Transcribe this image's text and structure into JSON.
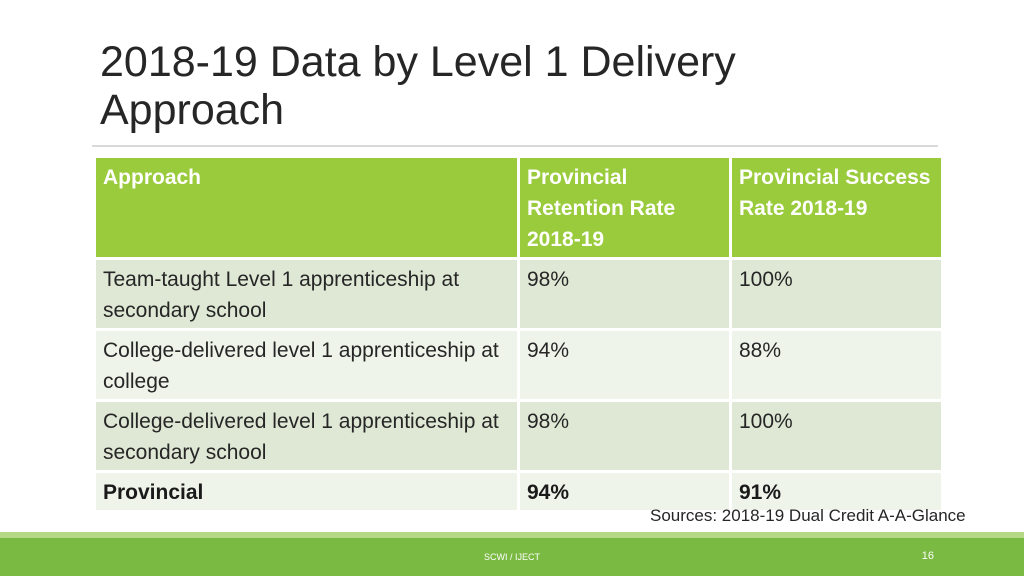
{
  "slide": {
    "title": "2018-19 Data by Level 1 Delivery Approach",
    "sources": "Sources: 2018-19 Dual Credit A-A-Glance",
    "footer_text": "SCWI / IJECT",
    "page_number": "16"
  },
  "table": {
    "headers": [
      "Approach",
      "Provincial Retention Rate 2018-19",
      "Provincial Success Rate 2018-19"
    ],
    "rows": [
      [
        "Team-taught Level 1 apprenticeship at secondary school",
        "98%",
        "100%"
      ],
      [
        "College-delivered level 1 apprenticeship at college",
        "94%",
        "88%"
      ],
      [
        "College-delivered level 1 apprenticeship at secondary school",
        "98%",
        "100%"
      ],
      [
        "Provincial",
        "94%",
        "91%"
      ]
    ]
  },
  "colors": {
    "header_green": "#9acb3c",
    "row_light": "#dfe8d5",
    "row_lighter": "#eef4ea",
    "footer_green": "#7ab942"
  }
}
